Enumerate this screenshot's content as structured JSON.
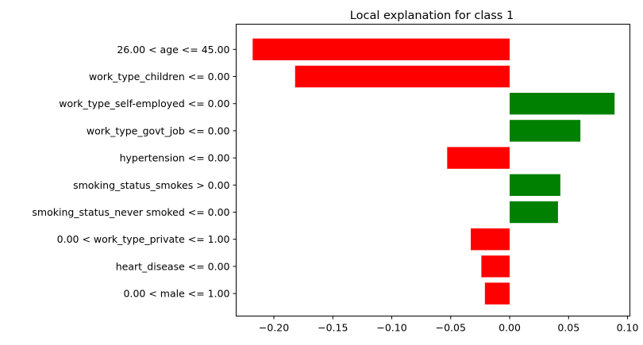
{
  "chart_data": {
    "type": "bar",
    "orientation": "horizontal",
    "title": "Local explanation for class 1",
    "xlabel": "",
    "ylabel": "",
    "xlim": [
      -0.232,
      0.102
    ],
    "xticks": [
      -0.2,
      -0.15,
      -0.1,
      -0.05,
      0.0,
      0.05,
      0.1
    ],
    "xtick_labels": [
      "−0.20",
      "−0.15",
      "−0.10",
      "−0.05",
      "0.00",
      "0.05",
      "0.10"
    ],
    "categories": [
      "26.00 < age <= 45.00",
      "work_type_children <= 0.00",
      "work_type_self-employed <= 0.00",
      "work_type_govt_job <= 0.00",
      "hypertension <= 0.00",
      "smoking_status_smokes > 0.00",
      "smoking_status_never smoked <= 0.00",
      "0.00 < work_type_private <= 1.00",
      "heart_disease <= 0.00",
      "0.00 < male <= 1.00"
    ],
    "values": [
      -0.218,
      -0.182,
      0.089,
      0.06,
      -0.053,
      0.043,
      0.041,
      -0.033,
      -0.024,
      -0.021
    ],
    "colors": {
      "positive": "#008000",
      "negative": "#ff0000"
    },
    "grid": false
  }
}
